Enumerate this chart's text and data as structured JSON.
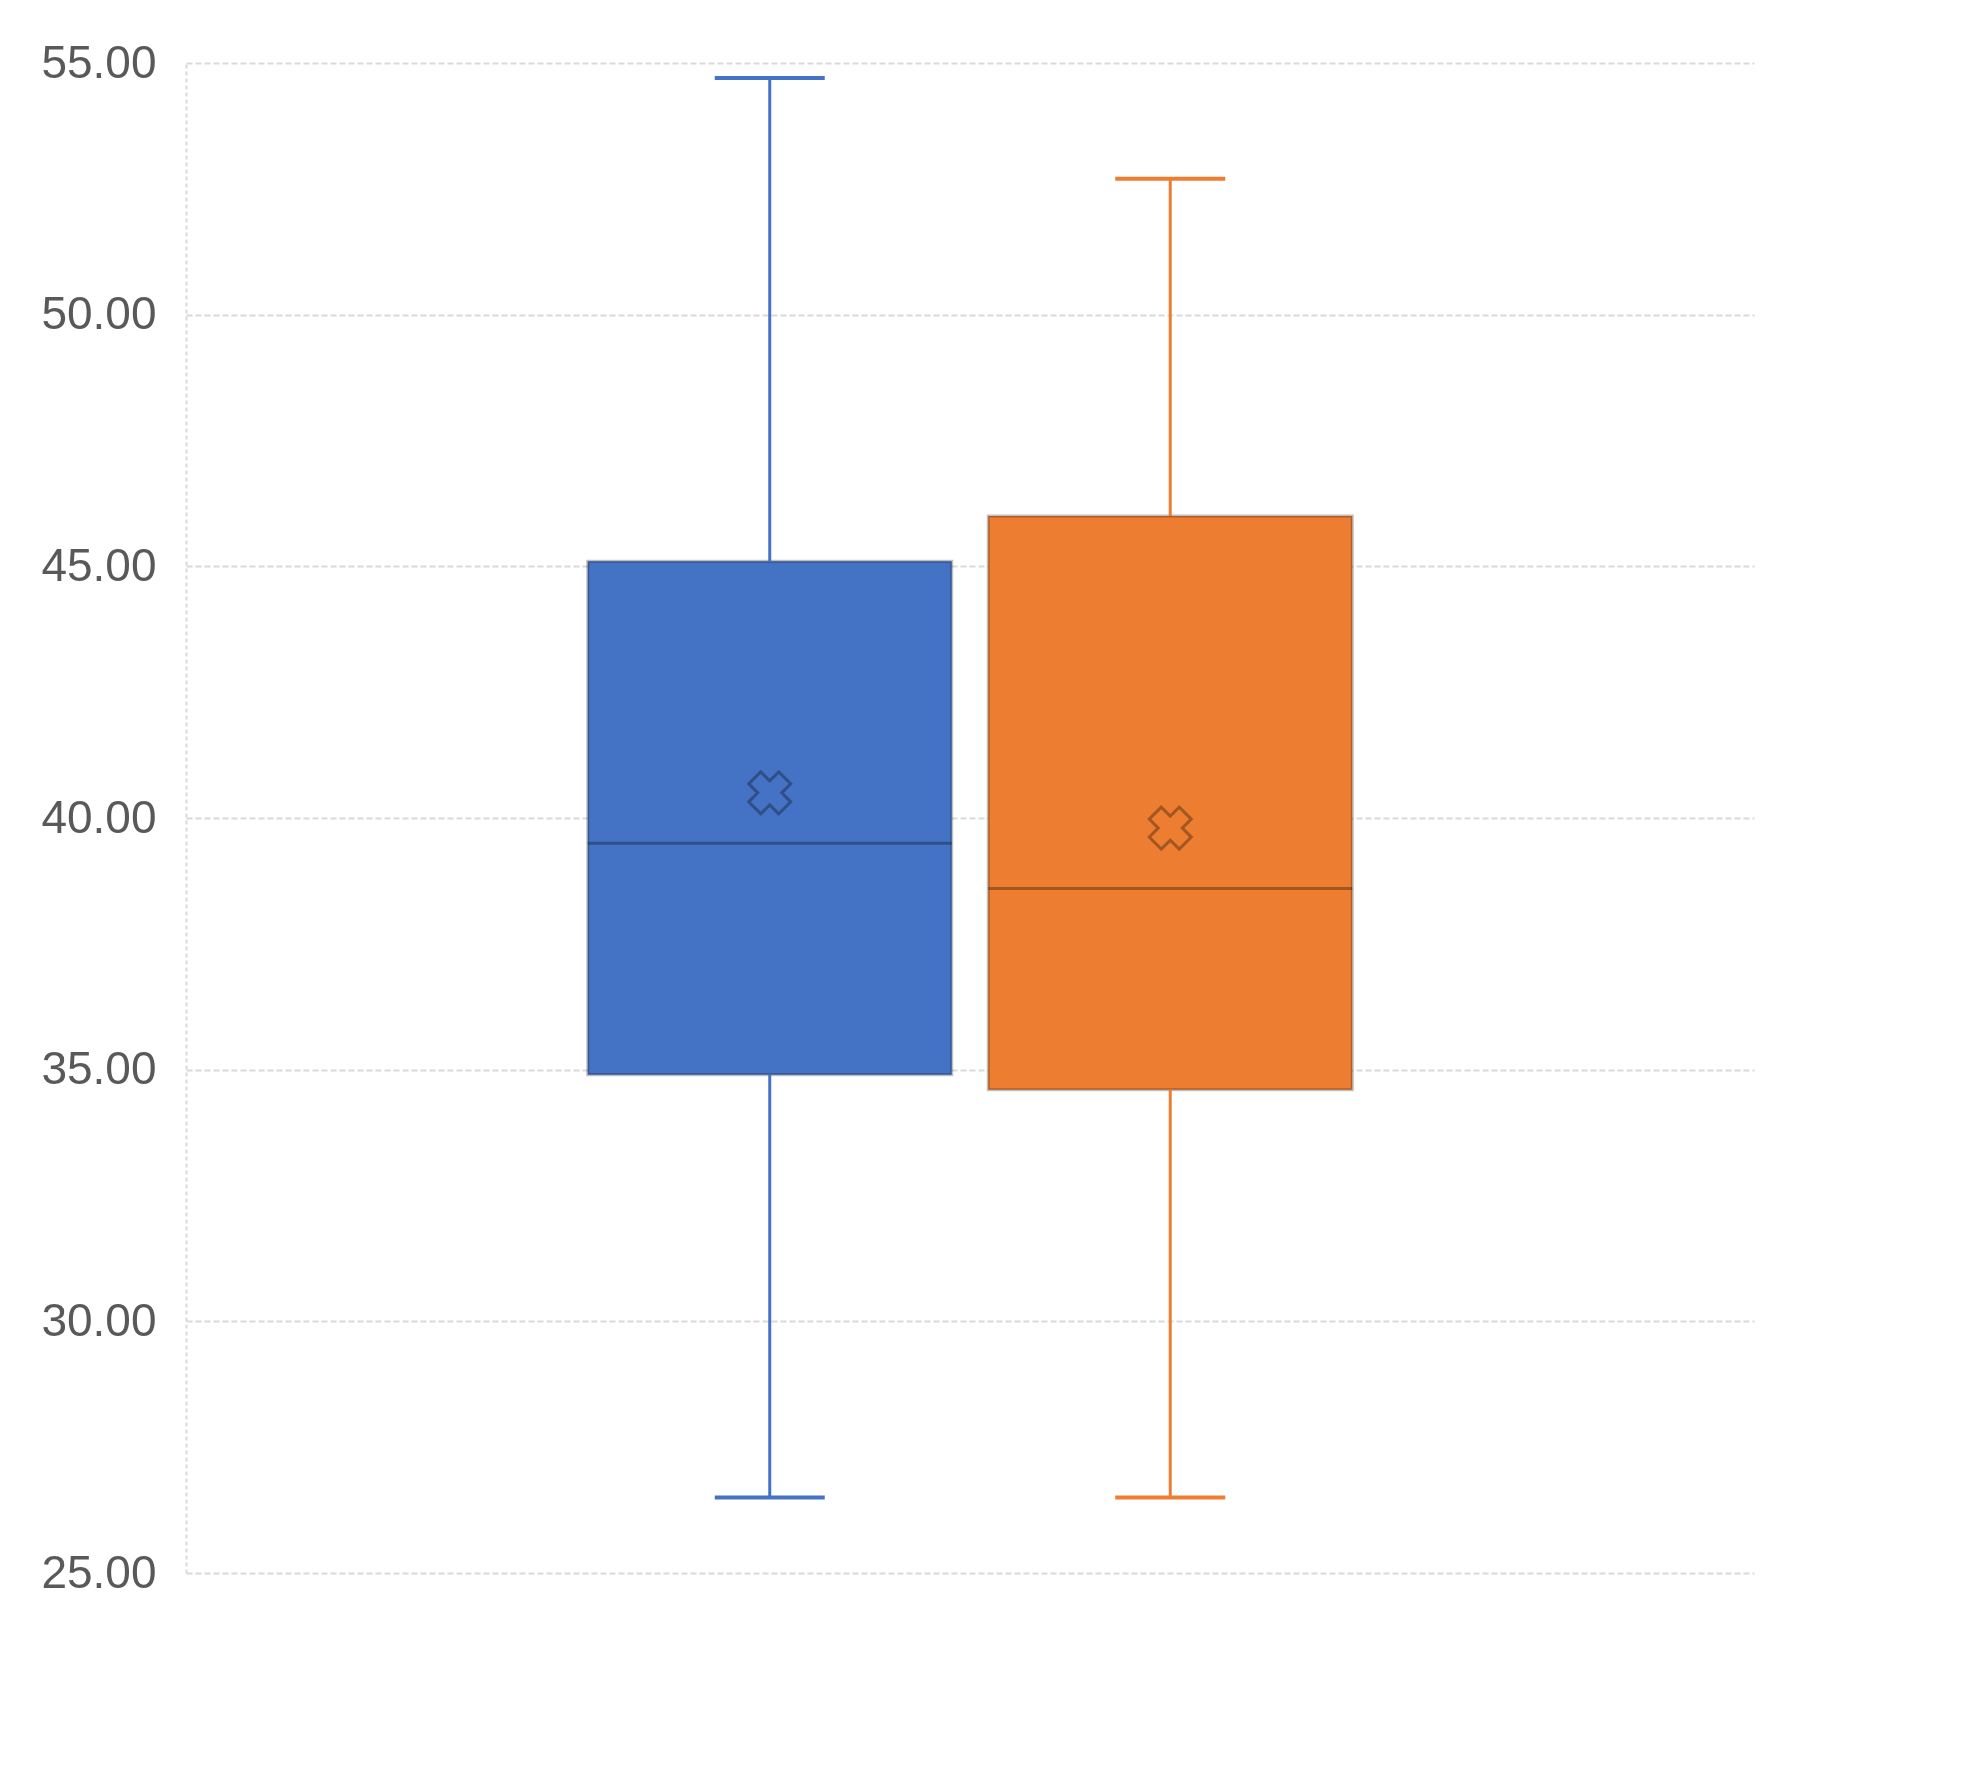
{
  "chart_data": {
    "type": "box",
    "categories": [
      null,
      null
    ],
    "boxes": [
      {
        "low": 26.5,
        "q1": 34.9,
        "median": 39.5,
        "q3": 45.1,
        "high": 54.7,
        "mean": 40.5
      },
      {
        "low": 26.5,
        "q1": 34.6,
        "median": 38.6,
        "q3": 46.0,
        "high": 52.7,
        "mean": 39.8
      }
    ],
    "colors": [
      "#4472c4",
      "#ed7d31"
    ],
    "ylim": [
      25,
      55
    ],
    "yticks": [
      {
        "value": 25,
        "label": "25.00"
      },
      {
        "value": 30,
        "label": "30.00"
      },
      {
        "value": 35,
        "label": "35.00"
      },
      {
        "value": 40,
        "label": "40.00"
      },
      {
        "value": 45,
        "label": "45.00"
      },
      {
        "value": 50,
        "label": "50.00"
      },
      {
        "value": 55,
        "label": "55.00"
      }
    ],
    "grid": "y",
    "tick_labels": "y"
  }
}
